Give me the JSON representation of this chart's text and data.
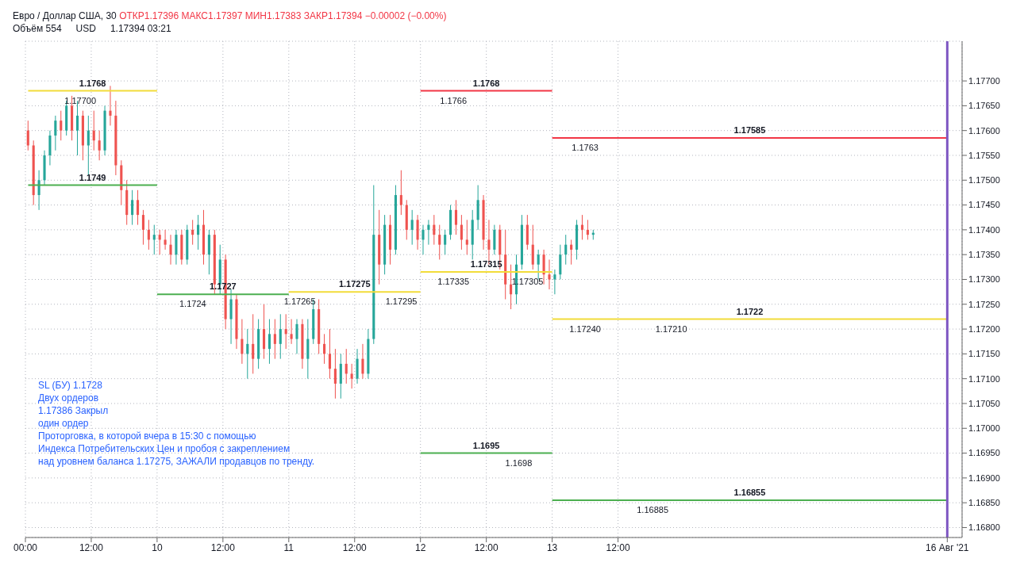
{
  "chart_data": {
    "type": "candlestick",
    "title": "Евро / Доллар США, 30",
    "subtitle": "ОТКР1.17396 МАКС1.17397 МИН1.17383 ЗАКР1.17394 −0.00002 (−0.00%)",
    "x": [
      "2021-08-09T00:30",
      "2021-08-09T01:30",
      "2021-08-09T02:30",
      "2021-08-09T03:30",
      "2021-08-09T04:30",
      "2021-08-09T05:30",
      "2021-08-09T06:30",
      "2021-08-09T07:30",
      "2021-08-09T08:30",
      "2021-08-09T09:30",
      "2021-08-09T10:30",
      "2021-08-09T11:30",
      "2021-08-09T12:30",
      "2021-08-09T13:30",
      "2021-08-09T14:30",
      "2021-08-09T15:30",
      "2021-08-09T16:30",
      "2021-08-09T17:30",
      "2021-08-09T18:30",
      "2021-08-09T19:30",
      "2021-08-09T20:30",
      "2021-08-09T21:30",
      "2021-08-09T22:30",
      "2021-08-09T23:30",
      "2021-08-10T00:30",
      "2021-08-10T01:30",
      "2021-08-10T02:30",
      "2021-08-10T03:30",
      "2021-08-10T04:30",
      "2021-08-10T05:30",
      "2021-08-10T06:30",
      "2021-08-10T07:30",
      "2021-08-10T08:30",
      "2021-08-10T09:30",
      "2021-08-10T10:30",
      "2021-08-10T11:30",
      "2021-08-10T12:30",
      "2021-08-10T13:30",
      "2021-08-10T14:30",
      "2021-08-10T15:30",
      "2021-08-10T16:30",
      "2021-08-10T17:30",
      "2021-08-10T18:30",
      "2021-08-10T19:30",
      "2021-08-10T20:30",
      "2021-08-10T21:30",
      "2021-08-10T22:30",
      "2021-08-10T23:30",
      "2021-08-11T00:30",
      "2021-08-11T01:30",
      "2021-08-11T02:30",
      "2021-08-11T03:30",
      "2021-08-11T04:30",
      "2021-08-11T05:30",
      "2021-08-11T06:30",
      "2021-08-11T07:30",
      "2021-08-11T08:30",
      "2021-08-11T09:30",
      "2021-08-11T10:30",
      "2021-08-11T11:30",
      "2021-08-11T12:30",
      "2021-08-11T13:30",
      "2021-08-11T14:30",
      "2021-08-11T15:30",
      "2021-08-11T16:30",
      "2021-08-11T17:30",
      "2021-08-11T18:30",
      "2021-08-11T19:30",
      "2021-08-11T20:30",
      "2021-08-11T21:30",
      "2021-08-11T22:30",
      "2021-08-11T23:30",
      "2021-08-12T00:30",
      "2021-08-12T01:30",
      "2021-08-12T02:30",
      "2021-08-12T03:30",
      "2021-08-12T04:30",
      "2021-08-12T05:30",
      "2021-08-12T06:30",
      "2021-08-12T07:30",
      "2021-08-12T08:30",
      "2021-08-12T09:30",
      "2021-08-12T10:30",
      "2021-08-12T11:30",
      "2021-08-12T12:30",
      "2021-08-12T13:30",
      "2021-08-12T14:30",
      "2021-08-12T15:30",
      "2021-08-12T16:30",
      "2021-08-12T17:30",
      "2021-08-12T18:30",
      "2021-08-12T19:30",
      "2021-08-12T20:30",
      "2021-08-12T21:30",
      "2021-08-12T22:30",
      "2021-08-12T23:30",
      "2021-08-13T00:30",
      "2021-08-13T01:30",
      "2021-08-13T02:30",
      "2021-08-13T03:30",
      "2021-08-13T04:30",
      "2021-08-13T05:30",
      "2021-08-13T06:30",
      "2021-08-13T07:30"
    ],
    "ohlc": [
      [
        1.176,
        1.1762,
        1.1756,
        1.1757
      ],
      [
        1.1757,
        1.1758,
        1.1745,
        1.1747
      ],
      [
        1.1747,
        1.1752,
        1.1744,
        1.175
      ],
      [
        1.175,
        1.1756,
        1.1749,
        1.1755
      ],
      [
        1.1755,
        1.176,
        1.1753,
        1.1759
      ],
      [
        1.1759,
        1.1763,
        1.1756,
        1.1762
      ],
      [
        1.1762,
        1.1764,
        1.1758,
        1.176
      ],
      [
        1.176,
        1.1766,
        1.1759,
        1.1765
      ],
      [
        1.1765,
        1.1767,
        1.1758,
        1.176
      ],
      [
        1.176,
        1.1766,
        1.1755,
        1.1763
      ],
      [
        1.1763,
        1.1764,
        1.1754,
        1.1757
      ],
      [
        1.1757,
        1.1763,
        1.1751,
        1.176
      ],
      [
        1.176,
        1.1764,
        1.1756,
        1.1758
      ],
      [
        1.1758,
        1.176,
        1.1754,
        1.1756
      ],
      [
        1.1756,
        1.1765,
        1.1755,
        1.1764
      ],
      [
        1.1764,
        1.1769,
        1.1761,
        1.1763
      ],
      [
        1.1763,
        1.1766,
        1.1751,
        1.1753
      ],
      [
        1.1753,
        1.1754,
        1.1745,
        1.1748
      ],
      [
        1.1748,
        1.175,
        1.1741,
        1.1743
      ],
      [
        1.1743,
        1.1748,
        1.1741,
        1.1746
      ],
      [
        1.1746,
        1.1748,
        1.1741,
        1.1743
      ],
      [
        1.1743,
        1.1744,
        1.1737,
        1.174
      ],
      [
        1.174,
        1.1742,
        1.1736,
        1.1738
      ],
      [
        1.1738,
        1.1741,
        1.1735,
        1.1739
      ],
      [
        1.1739,
        1.174,
        1.1735,
        1.1738
      ],
      [
        1.1738,
        1.174,
        1.1736,
        1.1737
      ],
      [
        1.1737,
        1.1739,
        1.1733,
        1.1735
      ],
      [
        1.1735,
        1.174,
        1.1733,
        1.1739
      ],
      [
        1.1739,
        1.174,
        1.1733,
        1.1734
      ],
      [
        1.1734,
        1.1741,
        1.1733,
        1.174
      ],
      [
        1.174,
        1.1742,
        1.1737,
        1.1739
      ],
      [
        1.1739,
        1.1743,
        1.1736,
        1.1741
      ],
      [
        1.1741,
        1.1744,
        1.1733,
        1.1735
      ],
      [
        1.1735,
        1.174,
        1.1731,
        1.1739
      ],
      [
        1.1739,
        1.174,
        1.1727,
        1.1729
      ],
      [
        1.1729,
        1.1737,
        1.1727,
        1.1734
      ],
      [
        1.1734,
        1.1735,
        1.172,
        1.1722
      ],
      [
        1.1722,
        1.1728,
        1.1717,
        1.1726
      ],
      [
        1.1726,
        1.1727,
        1.1716,
        1.1718
      ],
      [
        1.1718,
        1.1722,
        1.1713,
        1.1715
      ],
      [
        1.1715,
        1.172,
        1.171,
        1.1717
      ],
      [
        1.1717,
        1.1723,
        1.1711,
        1.1714
      ],
      [
        1.1714,
        1.1722,
        1.1712,
        1.172
      ],
      [
        1.172,
        1.1725,
        1.1714,
        1.1716
      ],
      [
        1.1716,
        1.1722,
        1.1713,
        1.1719
      ],
      [
        1.1719,
        1.1722,
        1.1714,
        1.1717
      ],
      [
        1.1717,
        1.1723,
        1.1714,
        1.172
      ],
      [
        1.172,
        1.1723,
        1.1716,
        1.1719
      ],
      [
        1.1719,
        1.1722,
        1.1717,
        1.1718
      ],
      [
        1.1718,
        1.1722,
        1.1715,
        1.1721
      ],
      [
        1.1721,
        1.1722,
        1.1712,
        1.1714
      ],
      [
        1.1714,
        1.1722,
        1.171,
        1.1718
      ],
      [
        1.1718,
        1.1726,
        1.1717,
        1.1724
      ],
      [
        1.1724,
        1.1726,
        1.1715,
        1.1717
      ],
      [
        1.1717,
        1.1719,
        1.1713,
        1.1715
      ],
      [
        1.1715,
        1.172,
        1.171,
        1.1712
      ],
      [
        1.1712,
        1.1716,
        1.1706,
        1.1709
      ],
      [
        1.1709,
        1.1715,
        1.1706,
        1.1713
      ],
      [
        1.1713,
        1.1716,
        1.1709,
        1.1711
      ],
      [
        1.1711,
        1.1713,
        1.1708,
        1.171
      ],
      [
        1.171,
        1.1716,
        1.1709,
        1.1714
      ],
      [
        1.1714,
        1.1717,
        1.171,
        1.1711
      ],
      [
        1.1711,
        1.172,
        1.171,
        1.1718
      ],
      [
        1.1718,
        1.1749,
        1.1717,
        1.1739
      ],
      [
        1.1739,
        1.1744,
        1.1729,
        1.1733
      ],
      [
        1.1733,
        1.1743,
        1.1731,
        1.1741
      ],
      [
        1.1741,
        1.1743,
        1.1733,
        1.1736
      ],
      [
        1.1736,
        1.1749,
        1.1735,
        1.1747
      ],
      [
        1.1747,
        1.1752,
        1.1743,
        1.1745
      ],
      [
        1.1745,
        1.1746,
        1.1738,
        1.174
      ],
      [
        1.174,
        1.1744,
        1.1737,
        1.1742
      ],
      [
        1.1742,
        1.1743,
        1.1736,
        1.1738
      ],
      [
        1.1738,
        1.1741,
        1.1735,
        1.174
      ],
      [
        1.174,
        1.1742,
        1.1737,
        1.1741
      ],
      [
        1.1741,
        1.1743,
        1.1737,
        1.1739
      ],
      [
        1.1739,
        1.1741,
        1.1734,
        1.1737
      ],
      [
        1.1737,
        1.174,
        1.1735,
        1.1739
      ],
      [
        1.1739,
        1.1745,
        1.1738,
        1.1744
      ],
      [
        1.1744,
        1.1746,
        1.1739,
        1.1741
      ],
      [
        1.1741,
        1.1743,
        1.1736,
        1.1738
      ],
      [
        1.1738,
        1.1742,
        1.1735,
        1.1737
      ],
      [
        1.1737,
        1.1744,
        1.1734,
        1.1742
      ],
      [
        1.1742,
        1.1749,
        1.174,
        1.1746
      ],
      [
        1.1746,
        1.1747,
        1.1736,
        1.1738
      ],
      [
        1.1738,
        1.1742,
        1.1733,
        1.1736
      ],
      [
        1.1736,
        1.1741,
        1.1735,
        1.174
      ],
      [
        1.174,
        1.1741,
        1.1732,
        1.1735
      ],
      [
        1.1735,
        1.174,
        1.1726,
        1.1729
      ],
      [
        1.1729,
        1.1733,
        1.1724,
        1.1727
      ],
      [
        1.1727,
        1.1735,
        1.1725,
        1.1733
      ],
      [
        1.1733,
        1.1743,
        1.1732,
        1.1741
      ],
      [
        1.1741,
        1.1743,
        1.1736,
        1.1737
      ],
      [
        1.1737,
        1.1741,
        1.1732,
        1.1733
      ],
      [
        1.1733,
        1.1736,
        1.173,
        1.1735
      ],
      [
        1.1735,
        1.1736,
        1.1729,
        1.1731
      ],
      [
        1.1731,
        1.1734,
        1.1728,
        1.173
      ],
      [
        1.173,
        1.1732,
        1.1727,
        1.1731
      ],
      [
        1.1731,
        1.1737,
        1.173,
        1.1735
      ],
      [
        1.1735,
        1.1739,
        1.1733,
        1.1737
      ],
      [
        1.1737,
        1.1738,
        1.1733,
        1.1736
      ],
      [
        1.1736,
        1.1742,
        1.1734,
        1.1741
      ],
      [
        1.1741,
        1.1743,
        1.1738,
        1.174
      ],
      [
        1.174,
        1.1742,
        1.1738,
        1.1739
      ],
      [
        1.1739,
        1.174,
        1.1738,
        1.17394
      ]
    ],
    "series": [
      {
        "type": "line",
        "name": "1.1768",
        "color": "#f2dc3a",
        "x": [
          "2021-08-09T00:30",
          "2021-08-10"
        ],
        "values": [
          1.1768,
          1.1768
        ]
      },
      {
        "type": "line",
        "name": "1.1749",
        "color": "#4caf50",
        "x": [
          "2021-08-09T00:30",
          "2021-08-10"
        ],
        "values": [
          1.1749,
          1.1749
        ]
      },
      {
        "type": "line",
        "name": "1.1727",
        "color": "#4caf50",
        "x": [
          "2021-08-10",
          "2021-08-11"
        ],
        "values": [
          1.1727,
          1.1727
        ]
      },
      {
        "type": "line",
        "name": "1.17275",
        "color": "#f2dc3a",
        "x": [
          "2021-08-11",
          "2021-08-12"
        ],
        "values": [
          1.17275,
          1.17275
        ]
      },
      {
        "type": "line",
        "name": "1.1768",
        "color": "#f23645",
        "x": [
          "2021-08-12",
          "2021-08-13"
        ],
        "values": [
          1.1768,
          1.1768
        ]
      },
      {
        "type": "line",
        "name": "1.17315",
        "color": "#f2dc3a",
        "x": [
          "2021-08-12",
          "2021-08-13"
        ],
        "values": [
          1.17315,
          1.17315
        ]
      },
      {
        "type": "line",
        "name": "1.1695",
        "color": "#4caf50",
        "x": [
          "2021-08-12",
          "2021-08-13"
        ],
        "values": [
          1.1695,
          1.1695
        ]
      },
      {
        "type": "line",
        "name": "1.17585",
        "color": "#f23645",
        "x": [
          "2021-08-13",
          "2021-08-16"
        ],
        "values": [
          1.17585,
          1.17585
        ]
      },
      {
        "type": "line",
        "name": "1.1722",
        "color": "#f2dc3a",
        "x": [
          "2021-08-13",
          "2021-08-16"
        ],
        "values": [
          1.1722,
          1.1722
        ]
      },
      {
        "type": "line",
        "name": "1.16855",
        "color": "#4caf50",
        "x": [
          "2021-08-13",
          "2021-08-16"
        ],
        "values": [
          1.16855,
          1.16855
        ]
      }
    ],
    "xlim": [
      "2021-08-09T00:00",
      "2021-08-16T02:42"
    ],
    "xticks": [
      {
        "value": "2021-08-09T00:00",
        "label": "00:00"
      },
      {
        "value": "2021-08-09T12:00",
        "label": "12:00"
      },
      {
        "value": "2021-08-10",
        "label": "10"
      },
      {
        "value": "2021-08-10T12:00",
        "label": "12:00"
      },
      {
        "value": "2021-08-11",
        "label": "11"
      },
      {
        "value": "2021-08-11T12:00",
        "label": "12:00"
      },
      {
        "value": "2021-08-12",
        "label": "12"
      },
      {
        "value": "2021-08-12T12:00",
        "label": "12:00"
      },
      {
        "value": "2021-08-13",
        "label": "13"
      },
      {
        "value": "2021-08-13T12:00",
        "label": "12:00"
      },
      {
        "value": "2021-08-16",
        "label": "16 Авг '21"
      }
    ],
    "ylim": [
      1.1678,
      1.1778
    ],
    "yticks": [
      {
        "value": 1.168,
        "label": "1.16800"
      },
      {
        "value": 1.1685,
        "label": "1.16850"
      },
      {
        "value": 1.169,
        "label": "1.16900"
      },
      {
        "value": 1.1695,
        "label": "1.16950"
      },
      {
        "value": 1.17,
        "label": "1.17000"
      },
      {
        "value": 1.1705,
        "label": "1.17050"
      },
      {
        "value": 1.171,
        "label": "1.17100"
      },
      {
        "value": 1.1715,
        "label": "1.17150"
      },
      {
        "value": 1.172,
        "label": "1.17200"
      },
      {
        "value": 1.1725,
        "label": "1.17250"
      },
      {
        "value": 1.173,
        "label": "1.17300"
      },
      {
        "value": 1.1735,
        "label": "1.17350"
      },
      {
        "value": 1.174,
        "label": "1.17400"
      },
      {
        "value": 1.1745,
        "label": "1.17450"
      },
      {
        "value": 1.175,
        "label": "1.17500"
      },
      {
        "value": 1.1755,
        "label": "1.17550"
      },
      {
        "value": 1.176,
        "label": "1.17600"
      },
      {
        "value": 1.1765,
        "label": "1.17650"
      },
      {
        "value": 1.177,
        "label": "1.17700"
      }
    ],
    "grid": true,
    "ref_lines": [
      {
        "axis": "x",
        "value": "2021-08-16",
        "color": "#7e57c2"
      }
    ],
    "annotations": [
      "Объём 554",
      "USD",
      "1.17394 03:21",
      "SL (БУ) 1.1728",
      "Двух ордеров",
      "1.17386 Закрыл",
      "один ордер",
      "Проторговка, в которой вчера в 15:30 с помощью",
      "Индекса Потребительских Цен и пробоя с закреплением",
      "над уровнем баланса 1.17275, ЗАЖАЛИ продавцов по тренду.",
      {
        "text": "1.17700",
        "x": "2021-08-09T10:00",
        "y": 1.1768
      },
      {
        "text": "1.1766",
        "x": "2021-08-12T06:00",
        "y": 1.1768
      },
      {
        "text": "1.1763",
        "x": "2021-08-13T06:00",
        "y": 1.17585
      },
      {
        "text": "1.17265",
        "x": "2021-08-11T02:00",
        "y": 1.17275
      },
      {
        "text": "1.17295",
        "x": "2021-08-11T20:30",
        "y": 1.17275
      },
      {
        "text": "1.17335",
        "x": "2021-08-12T06:00",
        "y": 1.17315
      },
      {
        "text": "1.17305",
        "x": "2021-08-12T19:30",
        "y": 1.17315
      },
      {
        "text": "1.17240",
        "x": "2021-08-13T06:00",
        "y": 1.1722
      },
      {
        "text": "1.17210",
        "x": "2021-08-13T21:42",
        "y": 1.1722
      },
      {
        "text": "1.1724",
        "x": "2021-08-10T06:30",
        "y": 1.1727
      },
      {
        "text": "1.1698",
        "x": "2021-08-12T17:54",
        "y": 1.1695
      },
      {
        "text": "1.16885",
        "x": "2021-08-13T18:18",
        "y": 1.16855
      }
    ]
  }
}
